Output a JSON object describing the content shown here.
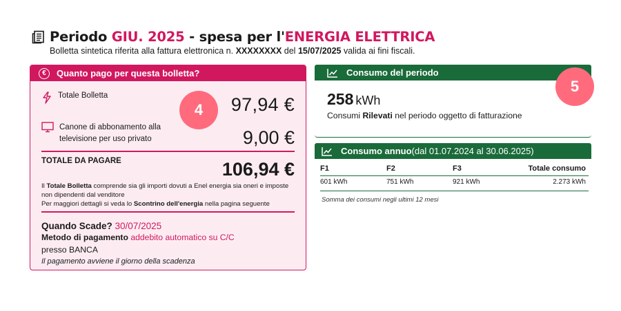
{
  "header": {
    "title_prefix": "Periodo ",
    "period": "GIU. 2025",
    "title_mid": " - spesa per l'",
    "commodity": "ENERGIA ELETTRICA",
    "sub_prefix": "Bolletta sintetica riferita alla fattura elettronica n. ",
    "invoice_no": "XXXXXXXX",
    "sub_mid": " del ",
    "invoice_date": "15/07/2025",
    "sub_suffix": " valida ai fini fiscali."
  },
  "payment_card": {
    "heading": "Quanto pago per questa bolletta?",
    "total_bill_label": "Totale Bolletta",
    "total_bill_amount": "97,94 €",
    "badge_number": "4",
    "tv_fee_label": "Canone di abbonamento alla televisione per uso privato",
    "tv_fee_amount": "9,00 €",
    "to_pay_label": "TOTALE DA PAGARE",
    "to_pay_amount": "106,94 €",
    "note1_prefix": "Il ",
    "note1_bold": "Totale Bolletta",
    "note1_rest": " comprende sia gli importi dovuti a Enel energia sia oneri e imposte non dipendenti dal venditore",
    "note2_prefix": "Per maggiori dettagli si veda lo ",
    "note2_bold": "Scontrino dell'energia",
    "note2_rest": " nella pagina seguente",
    "due_label": "Quando Scade? ",
    "due_date": "30/07/2025",
    "method_label": "Metodo di pagamento ",
    "method_value": "addebito automatico su C/C",
    "bank": "presso BANCA",
    "payday_note": "Il pagamento avviene il giorno della scadenza"
  },
  "consumption_card": {
    "heading": "Consumo del periodo",
    "value": "258",
    "unit": "kWh",
    "badge_number": "5",
    "desc_prefix": "Consumi ",
    "desc_bold": "Rilevati",
    "desc_rest": " nel periodo oggetto di fatturazione"
  },
  "annual_card": {
    "heading": "Consumo annuo",
    "heading_period": " (dal 01.07.2024 al 30.06.2025)",
    "columns": [
      "F1",
      "F2",
      "F3",
      "Totale consumo"
    ],
    "values": [
      "601 kWh",
      "751 kWh",
      "921 kWh",
      "2.273 kWh"
    ],
    "footnote": "Somma dei consumi negli ultimi 12 mesi"
  },
  "colors": {
    "accent_pink": "#d1185f",
    "card_bg_pink": "#fcecf2",
    "badge": "#ff6b7d",
    "green": "#1a6b3a"
  },
  "icons": [
    "document-icon",
    "euro-icon",
    "lightning-icon",
    "tv-icon",
    "trend-icon"
  ]
}
